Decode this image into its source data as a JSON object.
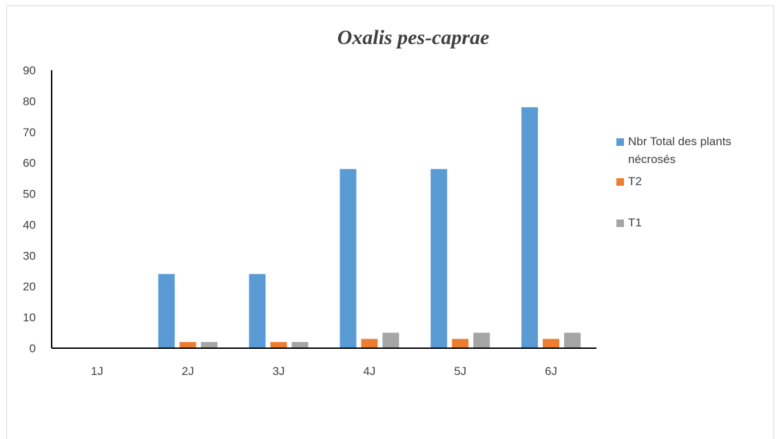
{
  "chart_data": {
    "type": "bar",
    "title": "Oxalis pes-caprae",
    "categories": [
      "1J",
      "2J",
      "3J",
      "4J",
      "5J",
      "6J"
    ],
    "series": [
      {
        "name": "Nbr Total des plants nécrosés",
        "color": "#5b9bd5",
        "values": [
          0,
          24,
          24,
          58,
          58,
          78
        ]
      },
      {
        "name": "T2",
        "color": "#ed7d31",
        "values": [
          0,
          2,
          2,
          3,
          3,
          3
        ]
      },
      {
        "name": "T1",
        "color": "#a5a5a5",
        "values": [
          0,
          2,
          2,
          5,
          5,
          5
        ]
      }
    ],
    "ylim": [
      0,
      90
    ],
    "yticks": [
      0,
      10,
      20,
      30,
      40,
      50,
      60,
      70,
      80,
      90
    ],
    "xlabel": "",
    "ylabel": "",
    "grid": false,
    "legend_position": "right"
  }
}
